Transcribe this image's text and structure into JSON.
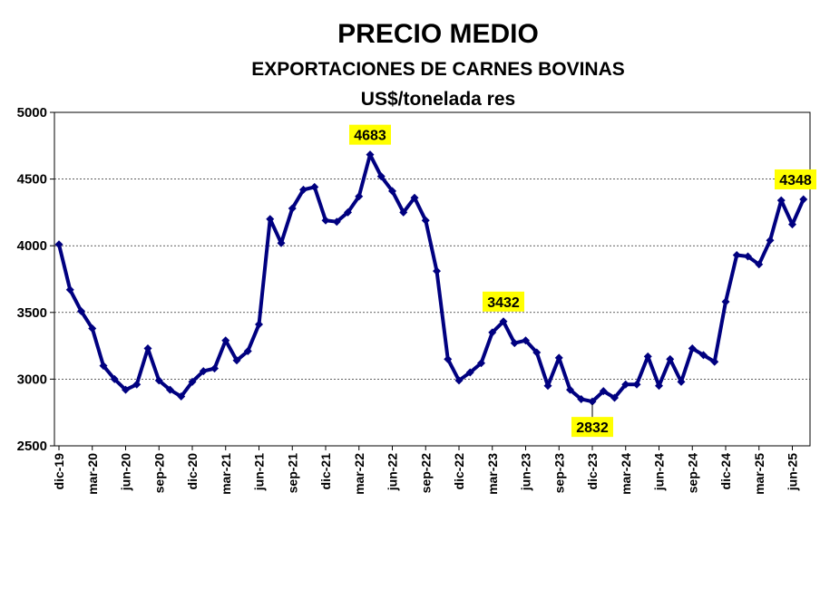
{
  "chart_data": {
    "type": "line",
    "title": "PRECIO MEDIO",
    "subtitle": "EXPORTACIONES DE CARNES BOVINAS",
    "unit": "US$/tonelada res",
    "ylim": [
      2500,
      5000
    ],
    "yticks": [
      2500,
      3000,
      3500,
      4000,
      4500,
      5000
    ],
    "grid": true,
    "colors": {
      "line": "#000080",
      "label_bg": "#ffff00"
    },
    "x_tick_labels": [
      "dic-19",
      "mar-20",
      "jun-20",
      "sep-20",
      "dic-20",
      "mar-21",
      "jun-21",
      "sep-21",
      "dic-21",
      "mar-22",
      "jun-22",
      "sep-22",
      "dic-22",
      "mar-23",
      "jun-23",
      "sep-23",
      "dic-23",
      "mar-24",
      "jun-24",
      "sep-24",
      "dic-24",
      "mar-25",
      "jun-25"
    ],
    "x": [
      "dic-19",
      "ene-20",
      "feb-20",
      "mar-20",
      "abr-20",
      "may-20",
      "jun-20",
      "jul-20",
      "ago-20",
      "sep-20",
      "oct-20",
      "nov-20",
      "dic-20",
      "ene-21",
      "feb-21",
      "mar-21",
      "abr-21",
      "may-21",
      "jun-21",
      "jul-21",
      "ago-21",
      "sep-21",
      "oct-21",
      "nov-21",
      "dic-21",
      "ene-22",
      "feb-22",
      "mar-22",
      "abr-22",
      "may-22",
      "jun-22",
      "jul-22",
      "ago-22",
      "sep-22",
      "oct-22",
      "nov-22",
      "dic-22",
      "ene-23",
      "feb-23",
      "mar-23",
      "abr-23",
      "may-23",
      "jun-23",
      "jul-23",
      "ago-23",
      "sep-23",
      "oct-23",
      "nov-23",
      "dic-23",
      "ene-24",
      "feb-24",
      "mar-24",
      "abr-24",
      "may-24",
      "jun-24",
      "jul-24",
      "ago-24",
      "sep-24",
      "oct-24",
      "nov-24",
      "dic-24",
      "ene-25",
      "feb-25",
      "mar-25",
      "abr-25",
      "may-25",
      "jun-25",
      "jul-25"
    ],
    "series": [
      {
        "values": [
          4010,
          3670,
          3510,
          3380,
          3100,
          3000,
          2920,
          2960,
          3230,
          2990,
          2920,
          2870,
          2980,
          3060,
          3080,
          3290,
          3140,
          3210,
          3410,
          4200,
          4020,
          4280,
          4420,
          4440,
          4190,
          4180,
          4250,
          4370,
          4683,
          4520,
          4410,
          4250,
          4360,
          4190,
          3810,
          3150,
          2990,
          3050,
          3120,
          3350,
          3432,
          3270,
          3290,
          3200,
          2950,
          3160,
          2920,
          2850,
          2832,
          2910,
          2860,
          2960,
          2960,
          3170,
          2950,
          3150,
          2980,
          3230,
          3180,
          3130,
          3580,
          3930,
          3920,
          3860,
          4040,
          4340,
          4160,
          4348
        ]
      }
    ],
    "annotations": [
      {
        "label": "4683",
        "index": 28,
        "position": "above"
      },
      {
        "label": "3432",
        "index": 40,
        "position": "above"
      },
      {
        "label": "2832",
        "index": 48,
        "position": "below"
      },
      {
        "label": "4348",
        "index": 67,
        "position": "above"
      }
    ]
  }
}
